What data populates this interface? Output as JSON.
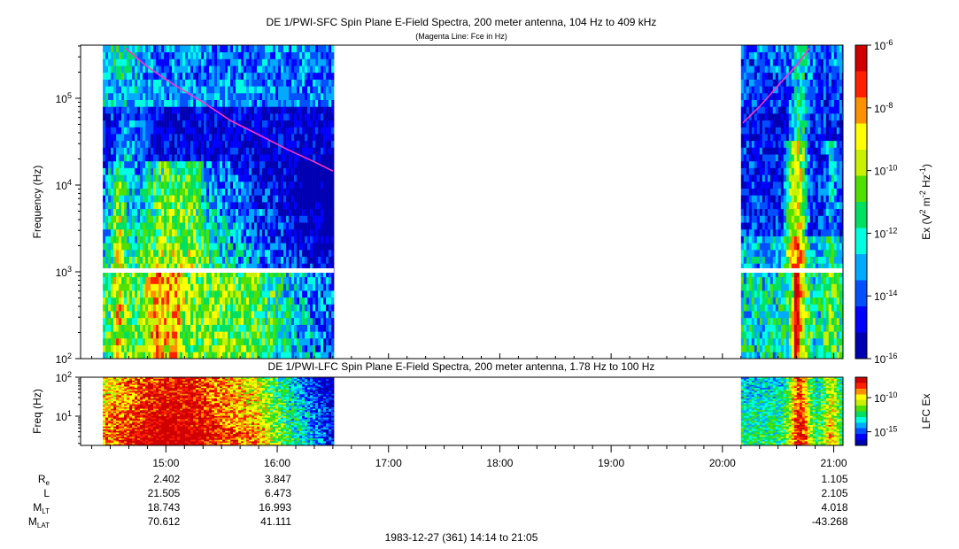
{
  "titles": {
    "sfc_title": "DE 1/PWI-SFC  Spin Plane E-Field Spectra, 200 meter antenna, 104 Hz to 409 kHz",
    "sfc_subtitle": "(Magenta Line: Fce in Hz)",
    "lfc_title": "DE 1/PWI-LFC  Spin Plane E-Field Spectra, 200 meter antenna, 1.78 Hz to 100 Hz",
    "footer": "1983-12-27 (361) 14:14 to 21:05"
  },
  "colors": {
    "background": "#ffffff",
    "fce_line": "#ff33cc",
    "colormap": [
      "#0000b3",
      "#0000ff",
      "#0050ff",
      "#00aaff",
      "#00ffe0",
      "#00e060",
      "#50e000",
      "#c8f000",
      "#ffff00",
      "#ff9000",
      "#ff2000",
      "#d00000"
    ]
  },
  "chart_data": [
    {
      "type": "heatmap",
      "name": "SFC",
      "ylabel": "Frequency (Hz)",
      "yscale": "log",
      "ylim": [
        100,
        409000
      ],
      "yticks": [
        {
          "v": 100,
          "base": "10",
          "exp": "2"
        },
        {
          "v": 1000,
          "base": "10",
          "exp": "3"
        },
        {
          "v": 10000,
          "base": "10",
          "exp": "4"
        },
        {
          "v": 100000,
          "base": "10",
          "exp": "5"
        }
      ],
      "xlim": [
        "14:14",
        "21:05"
      ],
      "data_intervals": [
        [
          "14:26",
          "16:30"
        ],
        [
          "20:10",
          "21:05"
        ]
      ],
      "colorbar": {
        "label_parts": [
          "Ex (V",
          "2",
          " m",
          "-2",
          " Hz",
          "-1",
          ")"
        ],
        "scale": "log",
        "range": [
          1e-16,
          1e-06
        ],
        "ticks": [
          {
            "v": -6,
            "base": "10",
            "exp": "-6"
          },
          {
            "v": -8,
            "base": "10",
            "exp": "-8"
          },
          {
            "v": -10,
            "base": "10",
            "exp": "-10"
          },
          {
            "v": -12,
            "base": "10",
            "exp": "-12"
          },
          {
            "v": -14,
            "base": "10",
            "exp": "-14"
          },
          {
            "v": -16,
            "base": "10",
            "exp": "-16"
          }
        ]
      },
      "fce_series": [
        {
          "time": "14:38",
          "freq": 380000
        },
        {
          "time": "14:50",
          "freq": 230000
        },
        {
          "time": "15:05",
          "freq": 140000
        },
        {
          "time": "15:20",
          "freq": 90000
        },
        {
          "time": "15:35",
          "freq": 55000
        },
        {
          "time": "15:50",
          "freq": 38000
        },
        {
          "time": "16:05",
          "freq": 26000
        },
        {
          "time": "16:20",
          "freq": 18500
        },
        {
          "time": "16:30",
          "freq": 14500
        },
        {
          "time": "20:11",
          "freq": 52000
        },
        {
          "time": "20:20",
          "freq": 80000
        },
        {
          "time": "20:30",
          "freq": 140000
        },
        {
          "time": "20:40",
          "freq": 240000
        },
        {
          "time": "20:47",
          "freq": 380000
        }
      ]
    },
    {
      "type": "heatmap",
      "name": "LFC",
      "ylabel": "Freq (Hz)",
      "yscale": "log",
      "ylim": [
        1.78,
        100
      ],
      "yticks": [
        {
          "v": 10,
          "base": "10",
          "exp": "1"
        },
        {
          "v": 100,
          "base": "10",
          "exp": "2"
        }
      ],
      "xlim": [
        "14:14",
        "21:05"
      ],
      "data_intervals": [
        [
          "14:26",
          "16:30"
        ],
        [
          "20:10",
          "21:05"
        ]
      ],
      "colorbar": {
        "label": "LFC Ex",
        "ticks": [
          {
            "v": -10,
            "base": "10",
            "exp": "-10"
          },
          {
            "v": -15,
            "base": "10",
            "exp": "-15"
          }
        ]
      }
    }
  ],
  "time_axis": {
    "major_ticks": [
      "15:00",
      "16:00",
      "17:00",
      "18:00",
      "19:00",
      "20:00",
      "21:00"
    ]
  },
  "ephemeris": {
    "rows": [
      {
        "label": "R",
        "sub": "e",
        "values": [
          "2.402",
          "3.847",
          "",
          "",
          "",
          "",
          "1.105"
        ]
      },
      {
        "label": "L",
        "sub": "",
        "values": [
          "21.505",
          "6.473",
          "",
          "",
          "",
          "",
          "2.105"
        ]
      },
      {
        "label": "M",
        "sub": "LT",
        "values": [
          "18.743",
          "16.993",
          "",
          "",
          "",
          "",
          "4.018"
        ]
      },
      {
        "label": "M",
        "sub": "LAT",
        "values": [
          "70.612",
          "41.111",
          "",
          "",
          "",
          "",
          "-43.268"
        ]
      }
    ]
  }
}
